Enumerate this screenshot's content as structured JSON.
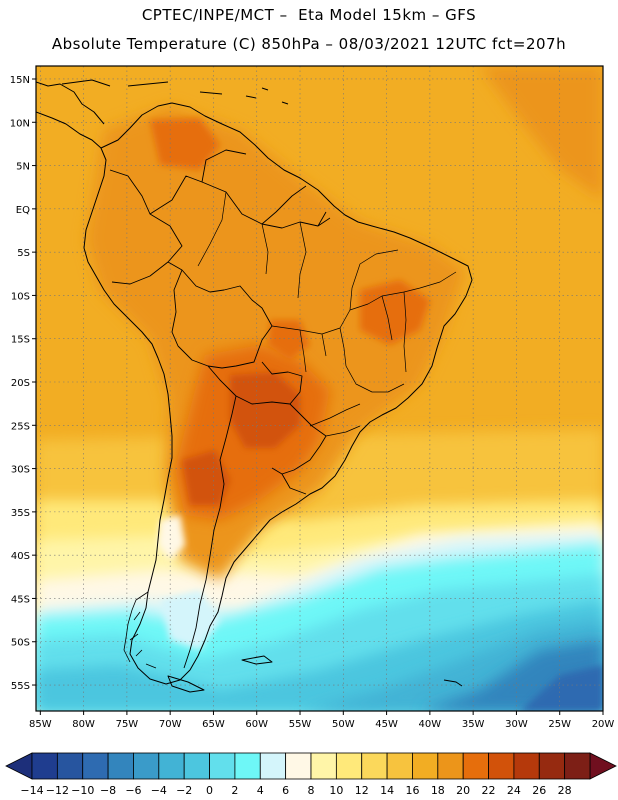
{
  "header": {
    "line1": "CPTEC/INPE/MCT –  Eta Model 15km – GFS",
    "line2": "Absolute Temperature (C) 850hPa – 08/03/2021 12UTC fct=207h"
  },
  "map": {
    "lat_ticks": [
      "15N",
      "10N",
      "5N",
      "EQ",
      "5S",
      "10S",
      "15S",
      "20S",
      "25S",
      "30S",
      "35S",
      "40S",
      "45S",
      "50S",
      "55S"
    ],
    "lon_ticks": [
      "85W",
      "80W",
      "75W",
      "70W",
      "65W",
      "60W",
      "55W",
      "50W",
      "45W",
      "40W",
      "35W",
      "30W",
      "25W",
      "20W"
    ],
    "lat_values": [
      15,
      10,
      5,
      0,
      -5,
      -10,
      -15,
      -20,
      -25,
      -30,
      -35,
      -40,
      -45,
      -50,
      -55
    ],
    "lon_values": [
      -85,
      -80,
      -75,
      -70,
      -65,
      -60,
      -55,
      -50,
      -45,
      -40,
      -35,
      -30,
      -25,
      -20
    ],
    "extent": {
      "lon_min": -85.5,
      "lon_max": -20,
      "lat_min": -58,
      "lat_max": 16.5
    }
  },
  "colorbar": {
    "labels": [
      "-14",
      "-12",
      "-10",
      "-8",
      "-6",
      "-4",
      "-2",
      "0",
      "2",
      "4",
      "6",
      "8",
      "10",
      "12",
      "14",
      "16",
      "18",
      "20",
      "22",
      "24",
      "26",
      "28"
    ],
    "colors": [
      "#1f3d8f",
      "#27559f",
      "#2e6bb1",
      "#3385bd",
      "#3a9bc9",
      "#42b3d5",
      "#4cc6df",
      "#62dfec",
      "#6ef7f7",
      "#d4f5fb",
      "#fff8e6",
      "#fff5a8",
      "#ffe97a",
      "#fbd85b",
      "#f7c33e",
      "#f2ad23",
      "#ec951a",
      "#e66e0c",
      "#d2520a",
      "#b5390b",
      "#962a10",
      "#7d1f16"
    ],
    "under_color": "#1d2f7a",
    "over_color": "#700f1f"
  },
  "field_colors": {
    "ocean_warm": "#f2ad23",
    "ocean_hot": "#ec951a",
    "tropical_land": "#ec951a",
    "hot_core": "#e66e0c",
    "hottest": "#d2520a",
    "mild": "#f7c33e",
    "cool_band": "#ffe97a",
    "pale_band": "#fff5a8",
    "cream": "#fff8e6",
    "aqua_light": "#d4f5fb",
    "aqua": "#6ef7f7",
    "cyan": "#62dfec",
    "teal": "#4cc6df",
    "blue_mid": "#42b3d5",
    "blue_deep": "#3385bd",
    "blue_dark": "#2e6bb1"
  }
}
